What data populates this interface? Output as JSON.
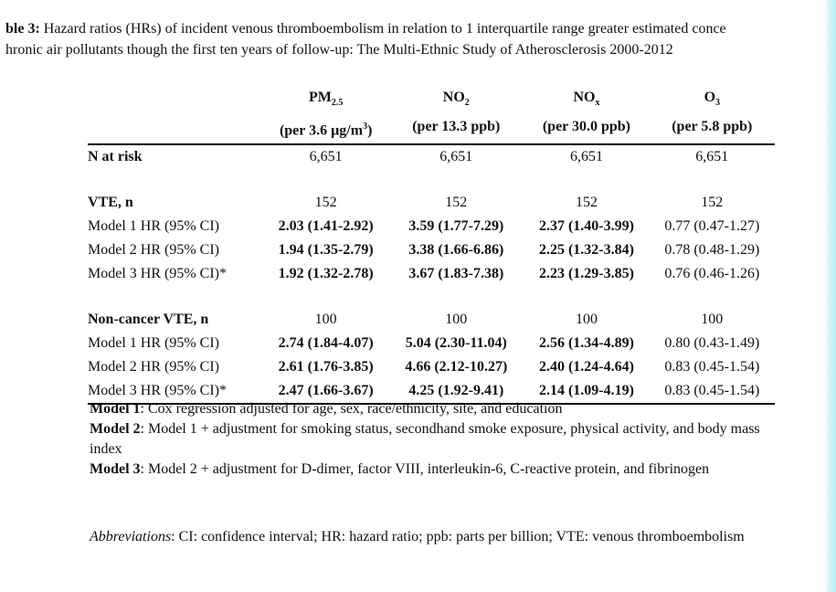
{
  "caption": {
    "label": "ble 3:",
    "line1": " Hazard ratios (HRs) of incident venous thromboembolism in relation to 1 interquartile range greater estimated conce",
    "line2": "hronic air pollutants though the first ten years of follow-up: The Multi-Ethnic Study of Atherosclerosis 2000-2012"
  },
  "table": {
    "columns": [
      {
        "name": "PM",
        "sub": "2.5",
        "sup": "",
        "unit": "(per 3.6 µg/m",
        "unit_sup": "3",
        "unit_end": ")"
      },
      {
        "name": "NO",
        "sub": "2",
        "sup": "",
        "unit": "(per 13.3 ppb)",
        "unit_sup": "",
        "unit_end": ""
      },
      {
        "name": "NO",
        "sub": "x",
        "sup": "",
        "unit": "(per 30.0 ppb)",
        "unit_sup": "",
        "unit_end": ""
      },
      {
        "name": "O",
        "sub": "3",
        "sup": "",
        "unit": "(per 5.8 ppb)",
        "unit_sup": "",
        "unit_end": ""
      }
    ],
    "n_at_risk": {
      "label": "N at risk",
      "values": [
        "6,651",
        "6,651",
        "6,651",
        "6,651"
      ]
    },
    "vte": {
      "heading": {
        "label": "VTE, n",
        "values": [
          "152",
          "152",
          "152",
          "152"
        ]
      },
      "rows": [
        {
          "label": "Model 1 HR (95% CI)",
          "values": [
            "2.03 (1.41-2.92)",
            "3.59 (1.77-7.29)",
            "2.37 (1.40-3.99)",
            "0.77 (0.47-1.27)"
          ]
        },
        {
          "label": "Model 2 HR (95% CI)",
          "values": [
            "1.94 (1.35-2.79)",
            "3.38 (1.66-6.86)",
            "2.25 (1.32-3.84)",
            "0.78 (0.48-1.29)"
          ]
        },
        {
          "label": "Model 3 HR (95% CI)*",
          "values": [
            "1.92 (1.32-2.78)",
            "3.67 (1.83-7.38)",
            "2.23 (1.29-3.85)",
            "0.76 (0.46-1.26)"
          ]
        }
      ]
    },
    "noncancer": {
      "heading": {
        "label": "Non-cancer VTE, n",
        "values": [
          "100",
          "100",
          "100",
          "100"
        ]
      },
      "rows": [
        {
          "label": "Model 1 HR (95% CI)",
          "values": [
            "2.74 (1.84-4.07)",
            "5.04 (2.30-11.04)",
            "2.56 (1.34-4.89)",
            "0.80 (0.43-1.49)"
          ]
        },
        {
          "label": "Model 2 HR (95% CI)",
          "values": [
            "2.61 (1.76-3.85)",
            "4.66 (2.12-10.27)",
            "2.40 (1.24-4.64)",
            "0.83 (0.45-1.54)"
          ]
        },
        {
          "label": "Model 3 HR (95% CI)*",
          "values": [
            "2.47 (1.66-3.67)",
            "4.25 (1.92-9.41)",
            "2.14 (1.09-4.19)",
            "0.83 (0.45-1.54)"
          ]
        }
      ]
    }
  },
  "notes": {
    "model1_label": "Model 1",
    "model1_text": ": Cox regression adjusted for age, sex, race/ethnicity, site, and education",
    "model2_label": "Model 2",
    "model2_text": ": Model 1 + adjustment for smoking status, secondhand smoke exposure, physical activity, and body mass index",
    "model3_label": "Model 3",
    "model3_text": ": Model 2 + adjustment for D-dimer, factor VIII, interleukin-6, C-reactive protein, and fibrinogen"
  },
  "abbreviations": {
    "label": "Abbreviations",
    "text": ": CI: confidence interval; HR: hazard ratio; ppb: parts per billion; VTE: venous thromboembolism"
  }
}
